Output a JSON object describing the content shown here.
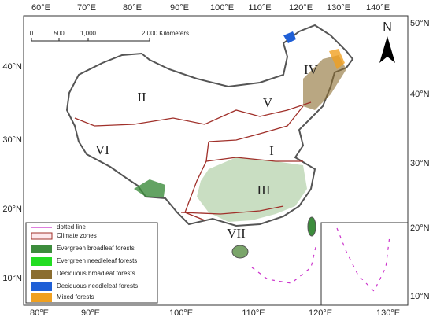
{
  "map": {
    "top_ticks": [
      "60°E",
      "70°E",
      "80°E",
      "90°E",
      "100°E",
      "110°E",
      "120°E",
      "130°E",
      "140°E"
    ],
    "bottom_ticks": [
      "80°E",
      "90°E",
      "100°E",
      "110°E",
      "120°E",
      "130°E"
    ],
    "left_ticks": [
      "40°N",
      "30°N",
      "20°N",
      "10°N"
    ],
    "right_ticks": [
      "50°N",
      "40°N",
      "30°N",
      "20°N",
      "10°N"
    ],
    "scale_bar": [
      "0",
      "500",
      "1,000",
      "2,000 Kilometers"
    ],
    "north": "N",
    "zones": [
      "I",
      "II",
      "III",
      "IV",
      "V",
      "VI",
      "VII"
    ],
    "legend": [
      {
        "label": "dotted line"
      },
      {
        "label": "Climate zones"
      },
      {
        "label": "Evergreen broadleaf forests",
        "color": "#3c8c3c"
      },
      {
        "label": "Evergreen needleleaf forests",
        "color": "#22dd22"
      },
      {
        "label": "Deciduous broadleaf forests",
        "color": "#8b6d2f"
      },
      {
        "label": "Deciduous needleleaf forests",
        "color": "#1f5fd6"
      },
      {
        "label": "Mixed forests",
        "color": "#f0a020"
      }
    ]
  }
}
